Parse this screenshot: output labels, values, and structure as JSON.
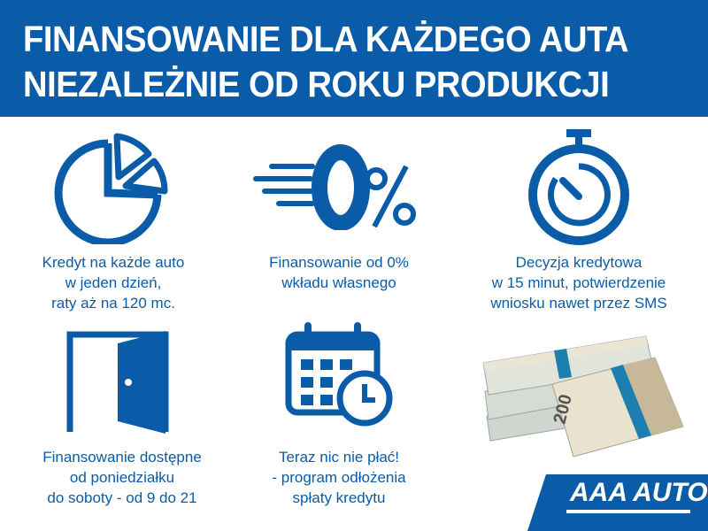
{
  "header": {
    "line1": "FINANSOWANIE DLA KAŻDEGO AUTA",
    "line2": "NIEZALEŻNIE OD ROKU PRODUKCJI"
  },
  "features": [
    {
      "icon": "pie-chart-icon",
      "lines": [
        "Kredyt na każde auto",
        "w jeden dzień,",
        "raty aż na 120 mc."
      ]
    },
    {
      "icon": "zero-percent-icon",
      "lines": [
        "Finansowanie od 0%",
        "wkładu własnego"
      ]
    },
    {
      "icon": "stopwatch-icon",
      "lines": [
        "Decyzja kredytowa",
        "w 15 minut, potwierdzenie",
        "wniosku nawet przez SMS"
      ]
    },
    {
      "icon": "open-door-icon",
      "lines": [
        "Finansowanie dostępne",
        "od poniedziałku",
        "do soboty - od 9 do 21"
      ]
    },
    {
      "icon": "calendar-clock-icon",
      "lines": [
        "Teraz nic nie płać!",
        "- program odłożenia",
        "spłaty kredytu"
      ]
    }
  ],
  "money_image": {
    "icon": "banknote-stack-icon",
    "denomination": "200"
  },
  "logo": {
    "text": "AAA AUTO"
  },
  "colors": {
    "brand_blue": "#0b5ca8",
    "white": "#ffffff"
  }
}
